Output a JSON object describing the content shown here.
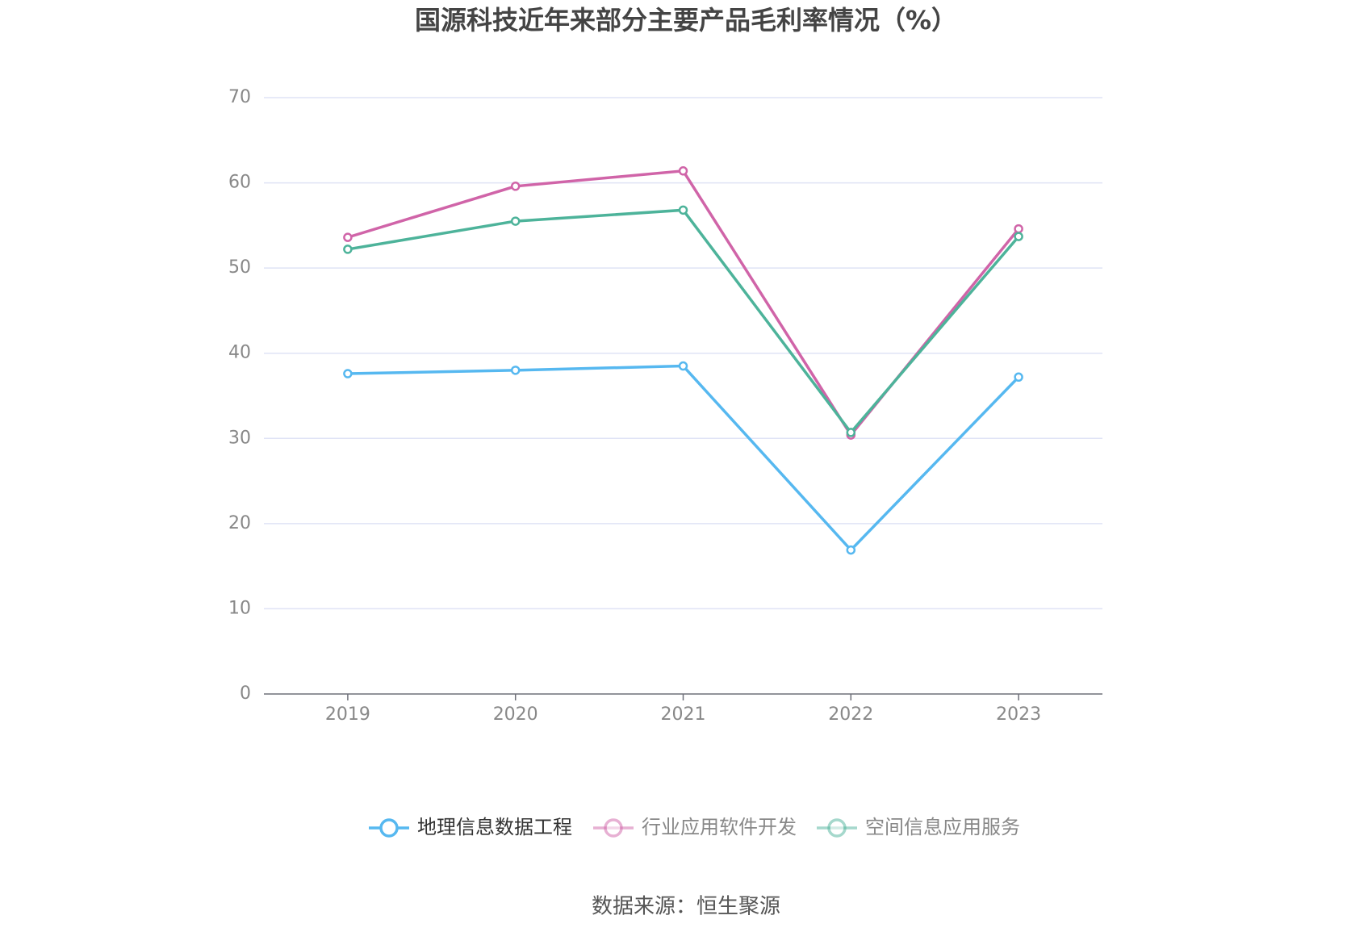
{
  "chart_data": {
    "type": "line",
    "title": "国源科技近年来部分主要产品毛利率情况（%）",
    "categories": [
      "2019",
      "2020",
      "2021",
      "2022",
      "2023"
    ],
    "series": [
      {
        "name": "地理信息数据工程",
        "color": "#56b8f0",
        "values": [
          37.6,
          38.0,
          38.5,
          16.9,
          37.2
        ]
      },
      {
        "name": "行业应用软件开发",
        "color": "#d064a8",
        "values": [
          53.6,
          59.6,
          61.4,
          30.4,
          54.6
        ]
      },
      {
        "name": "空间信息应用服务",
        "color": "#4db39a",
        "values": [
          52.2,
          55.5,
          56.8,
          30.7,
          53.7
        ]
      }
    ],
    "ylim": [
      0,
      70
    ],
    "yticks": [
      0,
      10,
      20,
      30,
      40,
      50,
      60,
      70
    ],
    "grid": true,
    "source": "数据来源：恒生聚源"
  }
}
